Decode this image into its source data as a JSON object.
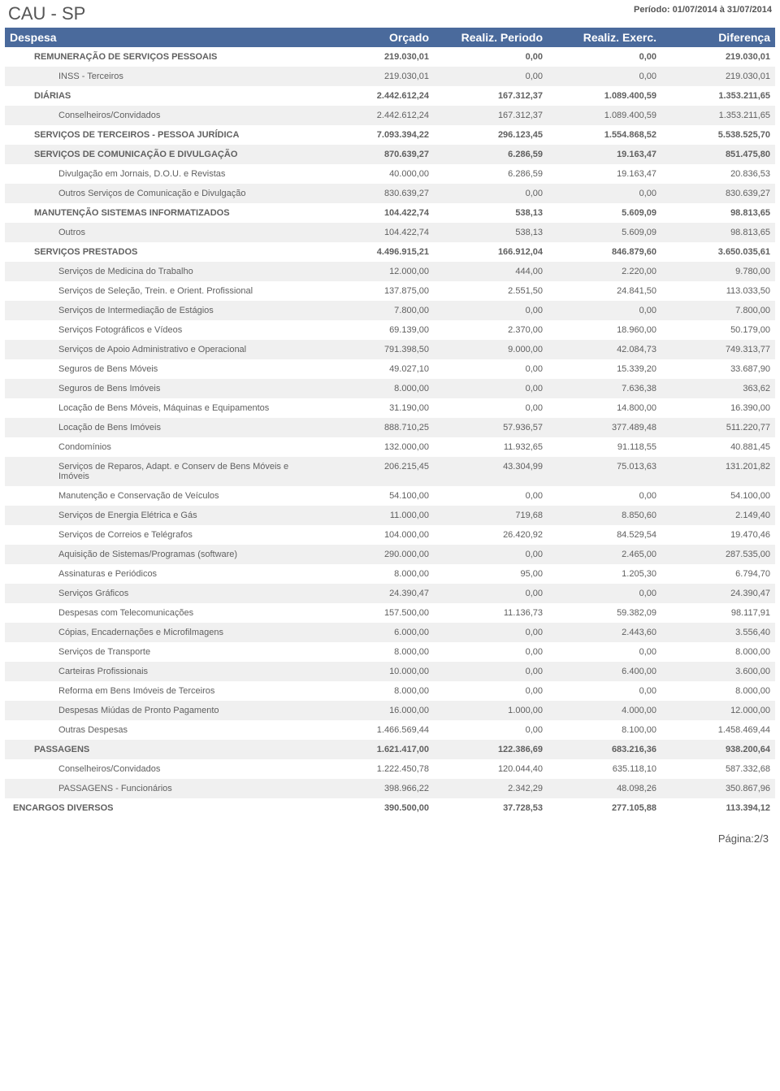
{
  "title": "CAU - SP",
  "period": "Período: 01/07/2014 à 31/07/2014",
  "headers": {
    "despesa": "Despesa",
    "orcado": "Orçado",
    "periodo": "Realiz. Periodo",
    "exerc": "Realiz. Exerc.",
    "diff": "Diferença"
  },
  "rows": [
    {
      "level": 1,
      "alt": false,
      "label": "REMUNERAÇÃO DE SERVIÇOS PESSOAIS",
      "c1": "219.030,01",
      "c2": "0,00",
      "c3": "0,00",
      "c4": "219.030,01"
    },
    {
      "level": 2,
      "alt": true,
      "label": "INSS - Terceiros",
      "c1": "219.030,01",
      "c2": "0,00",
      "c3": "0,00",
      "c4": "219.030,01"
    },
    {
      "level": 1,
      "alt": false,
      "label": "DIÁRIAS",
      "c1": "2.442.612,24",
      "c2": "167.312,37",
      "c3": "1.089.400,59",
      "c4": "1.353.211,65"
    },
    {
      "level": 2,
      "alt": true,
      "label": "Conselheiros/Convidados",
      "c1": "2.442.612,24",
      "c2": "167.312,37",
      "c3": "1.089.400,59",
      "c4": "1.353.211,65"
    },
    {
      "level": 1,
      "alt": false,
      "label": "SERVIÇOS DE TERCEIROS - PESSOA JURÍDICA",
      "c1": "7.093.394,22",
      "c2": "296.123,45",
      "c3": "1.554.868,52",
      "c4": "5.538.525,70"
    },
    {
      "level": 1,
      "alt": true,
      "label": "SERVIÇOS DE COMUNICAÇÃO E DIVULGAÇÃO",
      "c1": "870.639,27",
      "c2": "6.286,59",
      "c3": "19.163,47",
      "c4": "851.475,80"
    },
    {
      "level": 2,
      "alt": false,
      "label": "Divulgação em Jornais, D.O.U. e Revistas",
      "c1": "40.000,00",
      "c2": "6.286,59",
      "c3": "19.163,47",
      "c4": "20.836,53"
    },
    {
      "level": 2,
      "alt": true,
      "label": "Outros Serviços de Comunicação e Divulgação",
      "c1": "830.639,27",
      "c2": "0,00",
      "c3": "0,00",
      "c4": "830.639,27"
    },
    {
      "level": 1,
      "alt": false,
      "label": "MANUTENÇÃO SISTEMAS INFORMATIZADOS",
      "c1": "104.422,74",
      "c2": "538,13",
      "c3": "5.609,09",
      "c4": "98.813,65"
    },
    {
      "level": 2,
      "alt": true,
      "label": "Outros",
      "c1": "104.422,74",
      "c2": "538,13",
      "c3": "5.609,09",
      "c4": "98.813,65"
    },
    {
      "level": 1,
      "alt": false,
      "label": "SERVIÇOS PRESTADOS",
      "c1": "4.496.915,21",
      "c2": "166.912,04",
      "c3": "846.879,60",
      "c4": "3.650.035,61"
    },
    {
      "level": 2,
      "alt": true,
      "label": "Serviços de Medicina do Trabalho",
      "c1": "12.000,00",
      "c2": "444,00",
      "c3": "2.220,00",
      "c4": "9.780,00"
    },
    {
      "level": 2,
      "alt": false,
      "label": "Serviços de Seleção, Trein. e Orient. Profissional",
      "c1": "137.875,00",
      "c2": "2.551,50",
      "c3": "24.841,50",
      "c4": "113.033,50"
    },
    {
      "level": 2,
      "alt": true,
      "label": "Serviços de Intermediação de Estágios",
      "c1": "7.800,00",
      "c2": "0,00",
      "c3": "0,00",
      "c4": "7.800,00"
    },
    {
      "level": 2,
      "alt": false,
      "label": "Serviços Fotográficos e Vídeos",
      "c1": "69.139,00",
      "c2": "2.370,00",
      "c3": "18.960,00",
      "c4": "50.179,00"
    },
    {
      "level": 2,
      "alt": true,
      "label": "Serviços de Apoio Administrativo e Operacional",
      "c1": "791.398,50",
      "c2": "9.000,00",
      "c3": "42.084,73",
      "c4": "749.313,77"
    },
    {
      "level": 2,
      "alt": false,
      "label": "Seguros de Bens Móveis",
      "c1": "49.027,10",
      "c2": "0,00",
      "c3": "15.339,20",
      "c4": "33.687,90"
    },
    {
      "level": 2,
      "alt": true,
      "label": "Seguros de Bens Imóveis",
      "c1": "8.000,00",
      "c2": "0,00",
      "c3": "7.636,38",
      "c4": "363,62"
    },
    {
      "level": 2,
      "alt": false,
      "label": "Locação de Bens Móveis, Máquinas e Equipamentos",
      "c1": "31.190,00",
      "c2": "0,00",
      "c3": "14.800,00",
      "c4": "16.390,00"
    },
    {
      "level": 2,
      "alt": true,
      "label": "Locação de Bens Imóveis",
      "c1": "888.710,25",
      "c2": "57.936,57",
      "c3": "377.489,48",
      "c4": "511.220,77"
    },
    {
      "level": 2,
      "alt": false,
      "label": "Condomínios",
      "c1": "132.000,00",
      "c2": "11.932,65",
      "c3": "91.118,55",
      "c4": "40.881,45"
    },
    {
      "level": 2,
      "alt": true,
      "label": "Serviços de Reparos, Adapt. e Conserv de Bens Móveis e Imóveis",
      "c1": "206.215,45",
      "c2": "43.304,99",
      "c3": "75.013,63",
      "c4": "131.201,82"
    },
    {
      "level": 2,
      "alt": false,
      "label": "Manutenção e Conservação de Veículos",
      "c1": "54.100,00",
      "c2": "0,00",
      "c3": "0,00",
      "c4": "54.100,00"
    },
    {
      "level": 2,
      "alt": true,
      "label": "Serviços de Energia Elétrica e Gás",
      "c1": "11.000,00",
      "c2": "719,68",
      "c3": "8.850,60",
      "c4": "2.149,40"
    },
    {
      "level": 2,
      "alt": false,
      "label": "Serviços de Correios e Telégrafos",
      "c1": "104.000,00",
      "c2": "26.420,92",
      "c3": "84.529,54",
      "c4": "19.470,46"
    },
    {
      "level": 2,
      "alt": true,
      "label": "Aquisição de Sistemas/Programas (software)",
      "c1": "290.000,00",
      "c2": "0,00",
      "c3": "2.465,00",
      "c4": "287.535,00"
    },
    {
      "level": 2,
      "alt": false,
      "label": "Assinaturas e Periódicos",
      "c1": "8.000,00",
      "c2": "95,00",
      "c3": "1.205,30",
      "c4": "6.794,70"
    },
    {
      "level": 2,
      "alt": true,
      "label": "Serviços Gráficos",
      "c1": "24.390,47",
      "c2": "0,00",
      "c3": "0,00",
      "c4": "24.390,47"
    },
    {
      "level": 2,
      "alt": false,
      "label": "Despesas com Telecomunicações",
      "c1": "157.500,00",
      "c2": "11.136,73",
      "c3": "59.382,09",
      "c4": "98.117,91"
    },
    {
      "level": 2,
      "alt": true,
      "label": "Cópias, Encadernações e Microfilmagens",
      "c1": "6.000,00",
      "c2": "0,00",
      "c3": "2.443,60",
      "c4": "3.556,40"
    },
    {
      "level": 2,
      "alt": false,
      "label": "Serviços de Transporte",
      "c1": "8.000,00",
      "c2": "0,00",
      "c3": "0,00",
      "c4": "8.000,00"
    },
    {
      "level": 2,
      "alt": true,
      "label": "Carteiras Profissionais",
      "c1": "10.000,00",
      "c2": "0,00",
      "c3": "6.400,00",
      "c4": "3.600,00"
    },
    {
      "level": 2,
      "alt": false,
      "label": "Reforma em Bens Imóveis de Terceiros",
      "c1": "8.000,00",
      "c2": "0,00",
      "c3": "0,00",
      "c4": "8.000,00"
    },
    {
      "level": 2,
      "alt": true,
      "label": "Despesas Miúdas de Pronto Pagamento",
      "c1": "16.000,00",
      "c2": "1.000,00",
      "c3": "4.000,00",
      "c4": "12.000,00"
    },
    {
      "level": 2,
      "alt": false,
      "label": "Outras Despesas",
      "c1": "1.466.569,44",
      "c2": "0,00",
      "c3": "8.100,00",
      "c4": "1.458.469,44"
    },
    {
      "level": 1,
      "alt": true,
      "label": "PASSAGENS",
      "c1": "1.621.417,00",
      "c2": "122.386,69",
      "c3": "683.216,36",
      "c4": "938.200,64"
    },
    {
      "level": 2,
      "alt": false,
      "label": "Conselheiros/Convidados",
      "c1": "1.222.450,78",
      "c2": "120.044,40",
      "c3": "635.118,10",
      "c4": "587.332,68"
    },
    {
      "level": 2,
      "alt": true,
      "label": "PASSAGENS - Funcionários",
      "c1": "398.966,22",
      "c2": "2.342,29",
      "c3": "48.098,26",
      "c4": "350.867,96"
    },
    {
      "level": 0,
      "alt": false,
      "label": "ENCARGOS DIVERSOS",
      "c1": "390.500,00",
      "c2": "37.728,53",
      "c3": "277.105,88",
      "c4": "113.394,12"
    }
  ],
  "footer": "Página:2/3"
}
